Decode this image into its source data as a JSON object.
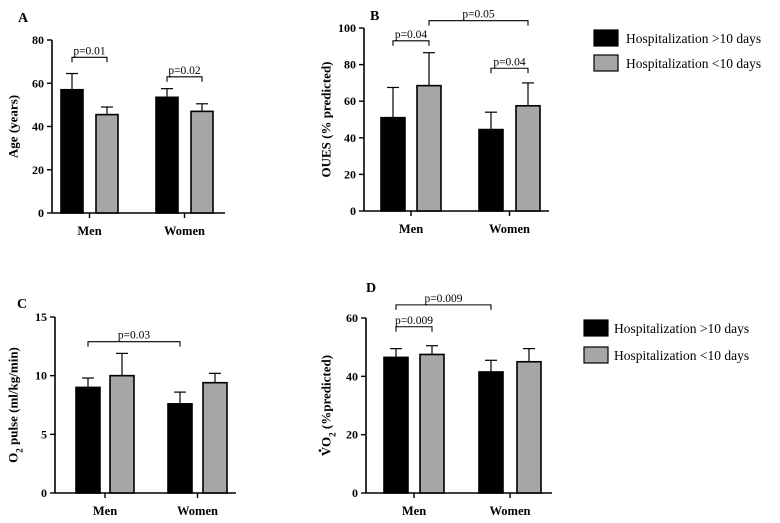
{
  "colors": {
    "long": "#000000",
    "short": "#a6a6a6",
    "axis": "#000000"
  },
  "legend": {
    "entries": [
      {
        "name": "Hospitalization >10 days",
        "color": "#000000"
      },
      {
        "name": "Hospitalization <10 days",
        "color": "#a6a6a6"
      }
    ]
  },
  "chart_data": [
    {
      "panel": "A",
      "type": "bar",
      "ylabel": "Age (years)",
      "ylim": [
        0,
        80
      ],
      "yticks": [
        "0",
        "20",
        "40",
        "60",
        "80"
      ],
      "categories": [
        "Men",
        "Women"
      ],
      "series": [
        {
          "name": "Hospitalization >10 days",
          "values": [
            57,
            53.5
          ],
          "errors": [
            7.5,
            4
          ]
        },
        {
          "name": "Hospitalization <10 days",
          "values": [
            45.5,
            47
          ],
          "errors": [
            3.5,
            3.5
          ]
        }
      ],
      "annotations": [
        {
          "label": "p=0.01",
          "from": [
            0,
            0
          ],
          "to": [
            0,
            1
          ],
          "y": 72
        },
        {
          "label": "p=0.02",
          "from": [
            1,
            0
          ],
          "to": [
            1,
            1
          ],
          "y": 63
        }
      ]
    },
    {
      "panel": "B",
      "type": "bar",
      "ylabel": "OUES (% predicted)",
      "ylim": [
        0,
        100
      ],
      "yticks": [
        "0",
        "20",
        "40",
        "60",
        "80",
        "100"
      ],
      "categories": [
        "Men",
        "Women"
      ],
      "series": [
        {
          "name": "Hospitalization >10 days",
          "values": [
            51,
            44.5
          ],
          "errors": [
            16.5,
            9.5
          ]
        },
        {
          "name": "Hospitalization <10 days",
          "values": [
            68.5,
            57.5
          ],
          "errors": [
            18,
            12.5
          ]
        }
      ],
      "annotations": [
        {
          "label": "p=0.04",
          "from": [
            0,
            0
          ],
          "to": [
            0,
            1
          ],
          "y": 93
        },
        {
          "label": "p=0.05",
          "from": [
            0,
            1
          ],
          "to": [
            1,
            1
          ],
          "y": 104
        },
        {
          "label": "p=0.04",
          "from": [
            1,
            0
          ],
          "to": [
            1,
            1
          ],
          "y": 78
        }
      ]
    },
    {
      "panel": "C",
      "type": "bar",
      "ylabel": "O2 pulse (ml/kg/min)",
      "ylim": [
        0,
        15
      ],
      "yticks": [
        "0",
        "5",
        "10",
        "15"
      ],
      "categories": [
        "Men",
        "Women"
      ],
      "series": [
        {
          "name": "Hospitalization >10 days",
          "values": [
            9,
            7.6
          ],
          "errors": [
            0.8,
            1
          ]
        },
        {
          "name": "Hospitalization <10 days",
          "values": [
            10,
            9.4
          ],
          "errors": [
            1.9,
            0.8
          ]
        }
      ],
      "annotations": [
        {
          "label": "p=0.03",
          "from": [
            0,
            0
          ],
          "to": [
            1,
            0
          ],
          "y": 12.9
        }
      ]
    },
    {
      "panel": "D",
      "type": "bar",
      "ylabel": "VO2 (%predicted)",
      "ylim": [
        0,
        60
      ],
      "yticks": [
        "0",
        "20",
        "40",
        "60"
      ],
      "categories": [
        "Men",
        "Women"
      ],
      "series": [
        {
          "name": "Hospitalization >10 days",
          "values": [
            46.5,
            41.5
          ],
          "errors": [
            3,
            4
          ]
        },
        {
          "name": "Hospitalization <10 days",
          "values": [
            47.5,
            45
          ],
          "errors": [
            3,
            4.5
          ]
        }
      ],
      "annotations": [
        {
          "label": "p=0.009",
          "from": [
            0,
            0
          ],
          "to": [
            0,
            1
          ],
          "y": 57
        },
        {
          "label": "p=0.009",
          "from": [
            0,
            0
          ],
          "to": [
            1,
            0
          ],
          "y": 64.5
        }
      ]
    }
  ]
}
